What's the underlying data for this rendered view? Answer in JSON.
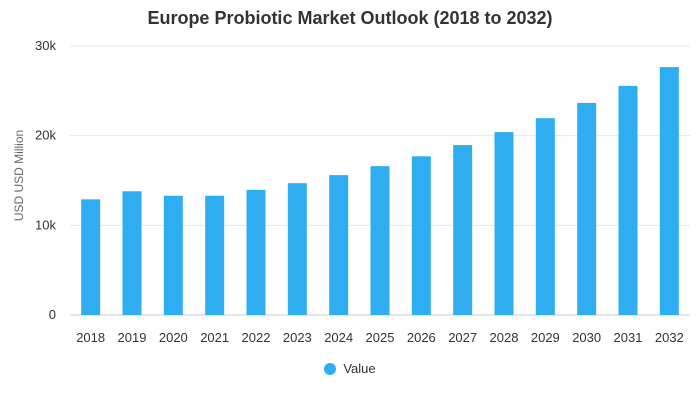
{
  "chart_data": {
    "type": "bar",
    "title": "Europe Probiotic Market Outlook (2018 to 2032)",
    "xlabel": "",
    "ylabel": "USD USD Million",
    "categories": [
      "2018",
      "2019",
      "2020",
      "2021",
      "2022",
      "2023",
      "2024",
      "2025",
      "2026",
      "2027",
      "2028",
      "2029",
      "2030",
      "2031",
      "2032"
    ],
    "series": [
      {
        "name": "Value",
        "values": [
          12900,
          13800,
          13300,
          13300,
          13950,
          14700,
          15600,
          16600,
          17700,
          18950,
          20400,
          21950,
          23650,
          25550,
          27650
        ]
      }
    ],
    "ylim": [
      0,
      30000
    ],
    "yticks": [
      {
        "value": 0,
        "label": "0"
      },
      {
        "value": 10000,
        "label": "10k"
      },
      {
        "value": 20000,
        "label": "20k"
      },
      {
        "value": 30000,
        "label": "30k"
      }
    ],
    "grid": true,
    "legend_position": "bottom-center",
    "colors": {
      "bar": "#2eaef0",
      "grid": "#e6e6e6",
      "axis": "#cccccc"
    }
  }
}
